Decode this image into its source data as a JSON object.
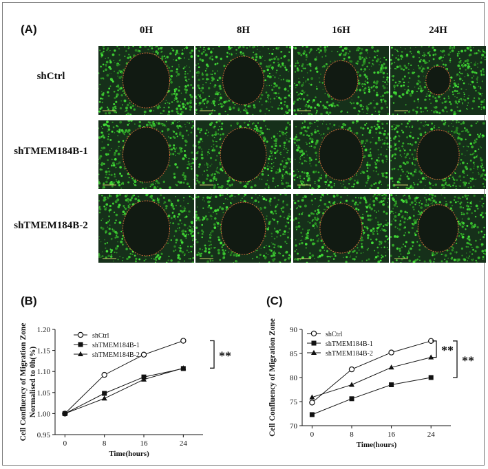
{
  "panel_a": {
    "label": "(A)",
    "columns": [
      "0H",
      "8H",
      "16H",
      "24H"
    ],
    "rows": [
      "shCtrl",
      "shTMEM184B-1",
      "shTMEM184B-2"
    ],
    "wound_scale": [
      [
        1.0,
        0.88,
        0.72,
        0.52
      ],
      [
        1.0,
        0.98,
        0.93,
        0.9
      ],
      [
        1.0,
        0.95,
        0.9,
        0.86
      ]
    ],
    "cell_color": "#3ea33a",
    "wound_color": "#111a12",
    "border_color": "#d26a3a"
  },
  "chart_data": [
    {
      "panel_label": "(B)",
      "type": "line",
      "xlabel": "Time(hours)",
      "ylabel": "Cell Confluency of Migration Zone",
      "ylabel2": "Normalised to 0h(%)",
      "x": [
        0,
        8,
        16,
        24
      ],
      "x_ticks": [
        "0",
        "8",
        "16",
        "24"
      ],
      "xlim": [
        -2,
        28
      ],
      "ylim": [
        0.95,
        1.2
      ],
      "y_ticks": [
        "0.95",
        "1.00",
        "1.05",
        "1.10",
        "1.15",
        "1.20"
      ],
      "y_tick_values": [
        0.95,
        1.0,
        1.05,
        1.1,
        1.15,
        1.2
      ],
      "series": [
        {
          "name": "shCtrl",
          "marker": "circle-open",
          "values": [
            1.0,
            1.092,
            1.14,
            1.173
          ]
        },
        {
          "name": "shTMEM184B-1",
          "marker": "square",
          "values": [
            1.0,
            1.048,
            1.087,
            1.107
          ]
        },
        {
          "name": "shTMEM184B-2",
          "marker": "triangle",
          "values": [
            1.0,
            1.036,
            1.081,
            1.108
          ]
        }
      ],
      "significance": [
        "**"
      ],
      "legend": "top-left",
      "grid": false
    },
    {
      "panel_label": "(C)",
      "type": "line",
      "xlabel": "Time(hours)",
      "ylabel": "Cell Confluency of Migration Zone",
      "x": [
        0,
        8,
        16,
        24
      ],
      "x_ticks": [
        "0",
        "8",
        "16",
        "24"
      ],
      "xlim": [
        -2,
        28
      ],
      "ylim": [
        70,
        90
      ],
      "y_ticks": [
        "70",
        "75",
        "80",
        "85",
        "90"
      ],
      "y_tick_values": [
        70,
        75,
        80,
        85,
        90
      ],
      "series": [
        {
          "name": "shCtrl",
          "marker": "circle-open",
          "values": [
            74.8,
            81.7,
            85.2,
            87.6
          ]
        },
        {
          "name": "shTMEM184B-1",
          "marker": "square",
          "values": [
            72.3,
            75.6,
            78.5,
            80.0
          ]
        },
        {
          "name": "shTMEM184B-2",
          "marker": "triangle",
          "values": [
            75.9,
            78.5,
            82.1,
            84.2
          ]
        }
      ],
      "significance": [
        "**",
        "**"
      ],
      "legend": "top-left",
      "grid": false
    }
  ]
}
